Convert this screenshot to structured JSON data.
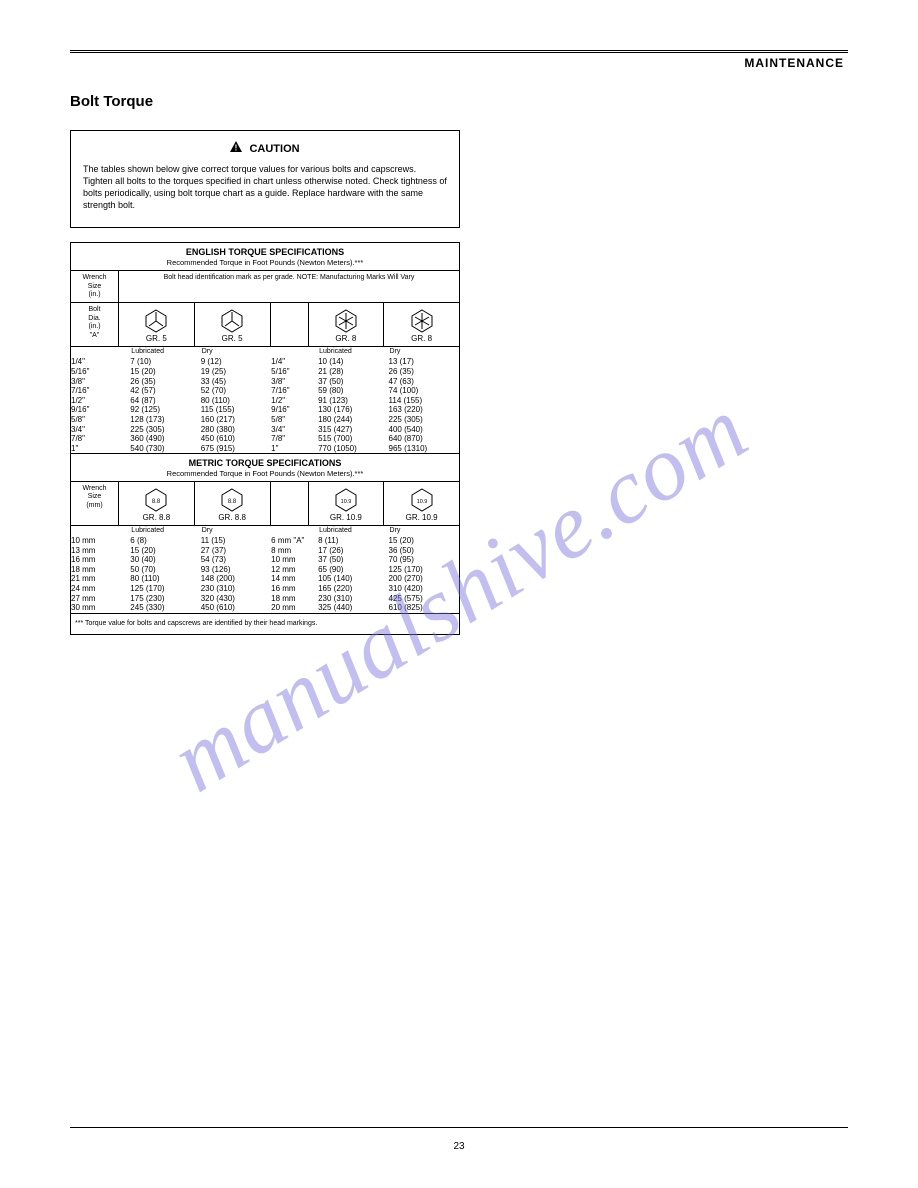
{
  "header": {
    "right": "MAINTENANCE"
  },
  "section_title": "Bolt Torque",
  "caution": {
    "label": "CAUTION",
    "body": "The tables shown below give correct torque values for various bolts and capscrews. Tighten all bolts to the torques specified in chart unless otherwise noted. Check tightness of bolts periodically, using bolt torque chart as a guide. Replace hardware with the same strength bolt."
  },
  "tables": {
    "english": {
      "title": "ENGLISH TORQUE SPECIFICATIONS",
      "sub": "Recommended Torque in Foot Pounds (Newton Meters).***",
      "size_label": "Wrench\nSize\n(in.)",
      "grade2_hdr": "Bolt head identification mark as per grade.\nNOTE:  Manufacturing Marks Will Vary",
      "grade_a": "GR. 5",
      "grade_b": "GR. 8",
      "cols": [
        {
          "size": "1/4\"",
          "a_d": "7 (10)",
          "a_w": "9 (12)",
          "b_d": "10 (14)",
          "b_w": "13 (17)"
        },
        {
          "size": "5/16\"",
          "a_d": "15 (20)",
          "a_w": "19 (25)",
          "b_d": "21 (28)",
          "b_w": "26 (35)"
        },
        {
          "size": "3/8\"",
          "a_d": "26 (35)",
          "a_w": "33 (45)",
          "b_d": "37 (50)",
          "b_w": "47 (63)"
        },
        {
          "size": "7/16\"",
          "a_d": "42 (57)",
          "a_w": "52 (70)",
          "b_d": "59 (80)",
          "b_w": "74 (100)"
        },
        {
          "size": "1/2\"",
          "a_d": "64 (87)",
          "a_w": "80 (110)",
          "b_d": "91 (123)",
          "b_w": "114 (155)"
        },
        {
          "size": "9/16\"",
          "a_d": "92 (125)",
          "a_w": "115 (155)",
          "b_d": "130 (176)",
          "b_w": "163 (220)"
        },
        {
          "size": "5/8\"",
          "a_d": "128 (173)",
          "a_w": "160 (217)",
          "b_d": "180 (244)",
          "b_w": "225 (305)"
        },
        {
          "size": "3/4\"",
          "a_d": "225 (305)",
          "a_w": "280 (380)",
          "b_d": "315 (427)",
          "b_w": "400 (540)"
        },
        {
          "size": "7/8\"",
          "a_d": "360 (490)",
          "a_w": "450 (610)",
          "b_d": "515 (700)",
          "b_w": "640 (870)"
        },
        {
          "size": "1\"",
          "a_d": "540 (730)",
          "a_w": "675 (915)",
          "b_d": "770 (1050)",
          "b_w": "965 (1310)"
        }
      ],
      "unit_dry": "Dry",
      "unit_lub": "Lubricated",
      "bolt_dia_a": "Bolt\nDia.\n(in.)\n\"A\""
    },
    "metric": {
      "title": "METRIC TORQUE SPECIFICATIONS",
      "sub": "Recommended Torque in Foot Pounds (Newton Meters).***",
      "size_label": "Wrench\nSize\n(mm)",
      "grade_a": "GR. 8.8",
      "grade_b": "GR. 10.9",
      "hex_a": "8.8",
      "hex_b": "10.9",
      "cols": [
        {
          "size": "10 mm",
          "dia": "6 mm \"A\"",
          "a_d": "6 (8)",
          "a_w": "11 (15)",
          "b_d": "8 (11)",
          "b_w": "15 (20)"
        },
        {
          "size": "13 mm",
          "dia": "8 mm",
          "a_d": "15 (20)",
          "a_w": "27 (37)",
          "b_d": "17 (26)",
          "b_w": "36 (50)"
        },
        {
          "size": "16 mm",
          "dia": "10 mm",
          "a_d": "30 (40)",
          "a_w": "54 (73)",
          "b_d": "37 (50)",
          "b_w": "70 (95)"
        },
        {
          "size": "18 mm",
          "dia": "12 mm",
          "a_d": "50 (70)",
          "a_w": "93 (126)",
          "b_d": "65 (90)",
          "b_w": "125 (170)"
        },
        {
          "size": "21 mm",
          "dia": "14 mm",
          "a_d": "80 (110)",
          "a_w": "148 (200)",
          "b_d": "105 (140)",
          "b_w": "200 (270)"
        },
        {
          "size": "24 mm",
          "dia": "16 mm",
          "a_d": "125 (170)",
          "a_w": "230 (310)",
          "b_d": "165 (220)",
          "b_w": "310 (420)"
        },
        {
          "size": "27 mm",
          "dia": "18 mm",
          "a_d": "175 (230)",
          "a_w": "320 (430)",
          "b_d": "230 (310)",
          "b_w": "425 (575)"
        },
        {
          "size": "30 mm",
          "dia": "20 mm",
          "a_d": "245 (330)",
          "a_w": "450 (610)",
          "b_d": "325 (440)",
          "b_w": "610 (825)"
        }
      ],
      "note": "*** Torque value for bolts and capscrews are identified by their head markings."
    }
  },
  "page_number": "23"
}
